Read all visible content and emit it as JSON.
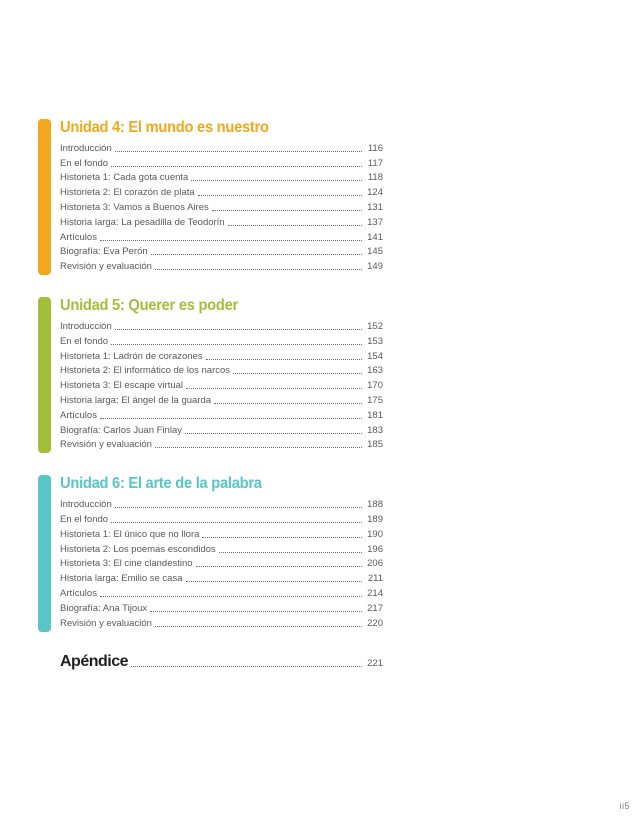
{
  "page": {
    "footer": "ii5",
    "background": "#ffffff"
  },
  "colors": {
    "body_text": "#58595b",
    "leader_dots": "#6d6e71",
    "appendix_text": "#231f20",
    "footer_text": "#7d7e81"
  },
  "toc": {
    "units": [
      {
        "title": "Unidad 4: El mundo es nuestro",
        "color": "#f1a81c",
        "items": [
          {
            "label": "Introducción",
            "page": "116"
          },
          {
            "label": "En el fondo",
            "page": "117"
          },
          {
            "label": "Historieta 1: Cada gota cuenta",
            "page": "118"
          },
          {
            "label": "Historieta 2: El corazón de plata",
            "page": "124"
          },
          {
            "label": "Historieta 3: Vamos a Buenos Aires",
            "page": "131"
          },
          {
            "label": "Historia larga: La pesadilla de Teodorín",
            "page": "137"
          },
          {
            "label": "Artículos",
            "page": "141"
          },
          {
            "label": "Biografía: Eva Perón",
            "page": "145"
          },
          {
            "label": "Revisión y evaluación",
            "page": "149"
          }
        ]
      },
      {
        "title": "Unidad 5: Querer es poder",
        "color": "#a3be3b",
        "items": [
          {
            "label": "Introducción",
            "page": "152"
          },
          {
            "label": "En el fondo",
            "page": "153"
          },
          {
            "label": "Historieta 1: Ladrón de corazones",
            "page": "154"
          },
          {
            "label": "Historieta 2: El informático de los narcos",
            "page": "163"
          },
          {
            "label": "Historieta 3: El escape virtual",
            "page": "170"
          },
          {
            "label": "Historia larga: El ángel de la guarda",
            "page": "175"
          },
          {
            "label": "Artículos",
            "page": "181"
          },
          {
            "label": "Biografía: Carlos Juan Finlay",
            "page": "183"
          },
          {
            "label": "Revisión y evaluación",
            "page": "185"
          }
        ]
      },
      {
        "title": "Unidad 6: El arte de la palabra",
        "color": "#58c5c7",
        "items": [
          {
            "label": "Introducción",
            "page": "188"
          },
          {
            "label": "En el fondo",
            "page": "189"
          },
          {
            "label": "Historieta 1: El único que no llora",
            "page": "190"
          },
          {
            "label": "Historieta 2: Los poemas escondidos",
            "page": "196"
          },
          {
            "label": "Historieta 3: El cine clandestino",
            "page": "206"
          },
          {
            "label": "Historia larga: Emilio se casa",
            "page": "211"
          },
          {
            "label": "Artículos",
            "page": "214"
          },
          {
            "label": "Biografía: Ana Tijoux",
            "page": "217"
          },
          {
            "label": "Revisión y evaluación",
            "page": "220"
          }
        ]
      }
    ],
    "appendix": {
      "label": "Apéndice",
      "page": "221"
    }
  }
}
